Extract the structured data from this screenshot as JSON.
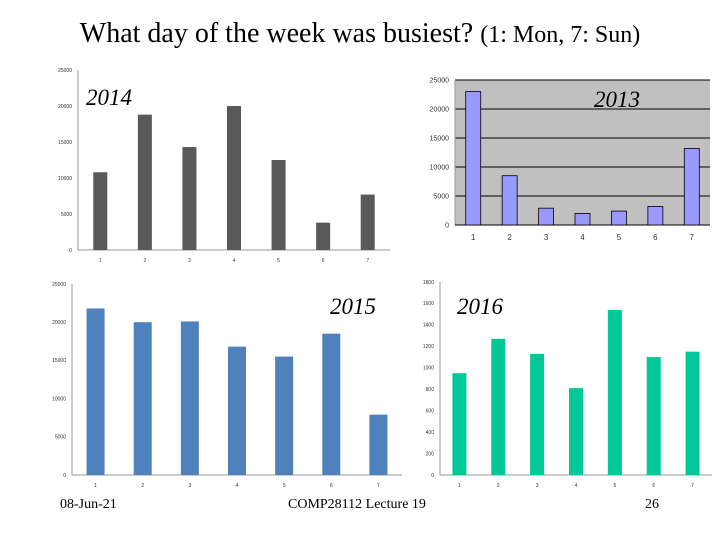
{
  "slide": {
    "title": "What day of the week was busiest?",
    "subtitle": "(1: Mon, 7: Sun)",
    "footer_date": "08-Jun-21",
    "footer_course": "COMP28112 Lecture 19",
    "page_number": "26"
  },
  "chart_data": [
    {
      "type": "bar",
      "title": "2014",
      "categories": [
        "1",
        "2",
        "3",
        "4",
        "5",
        "6",
        "7"
      ],
      "values": [
        10800,
        18800,
        14300,
        20000,
        12500,
        3800,
        7700
      ],
      "ylim": [
        0,
        25000
      ],
      "yticks": [
        "0",
        "5000",
        "10000",
        "15000",
        "20000",
        "25000"
      ],
      "color": "#595959",
      "grid": false
    },
    {
      "type": "bar",
      "title": "2013",
      "categories": [
        "1",
        "2",
        "3",
        "4",
        "5",
        "6",
        "7"
      ],
      "values": [
        23000,
        8500,
        2900,
        2000,
        2400,
        3200,
        13200
      ],
      "ylim": [
        0,
        25000
      ],
      "yticks": [
        "0",
        "5000",
        "10000",
        "15000",
        "20000",
        "25000"
      ],
      "color": "#9999ff",
      "plot_background": "#c0c0c0",
      "grid": true
    },
    {
      "type": "bar",
      "title": "2015",
      "categories": [
        "1",
        "2",
        "3",
        "4",
        "5",
        "6",
        "7"
      ],
      "values": [
        21800,
        20000,
        20100,
        16800,
        15500,
        18500,
        7900
      ],
      "ylim": [
        0,
        25000
      ],
      "yticks": [
        "0",
        "5000",
        "10000",
        "15000",
        "20000",
        "25000"
      ],
      "color": "#4f81bd",
      "grid": false
    },
    {
      "type": "bar",
      "title": "2016",
      "categories": [
        "1",
        "2",
        "3",
        "4",
        "5",
        "6",
        "7"
      ],
      "values": [
        950,
        1270,
        1130,
        810,
        1540,
        1100,
        1150
      ],
      "ylim": [
        0,
        1800
      ],
      "yticks": [
        "0",
        "200",
        "400",
        "600",
        "800",
        "1000",
        "1200",
        "1400",
        "1600",
        "1800"
      ],
      "color": "#00c896",
      "grid": false
    }
  ]
}
